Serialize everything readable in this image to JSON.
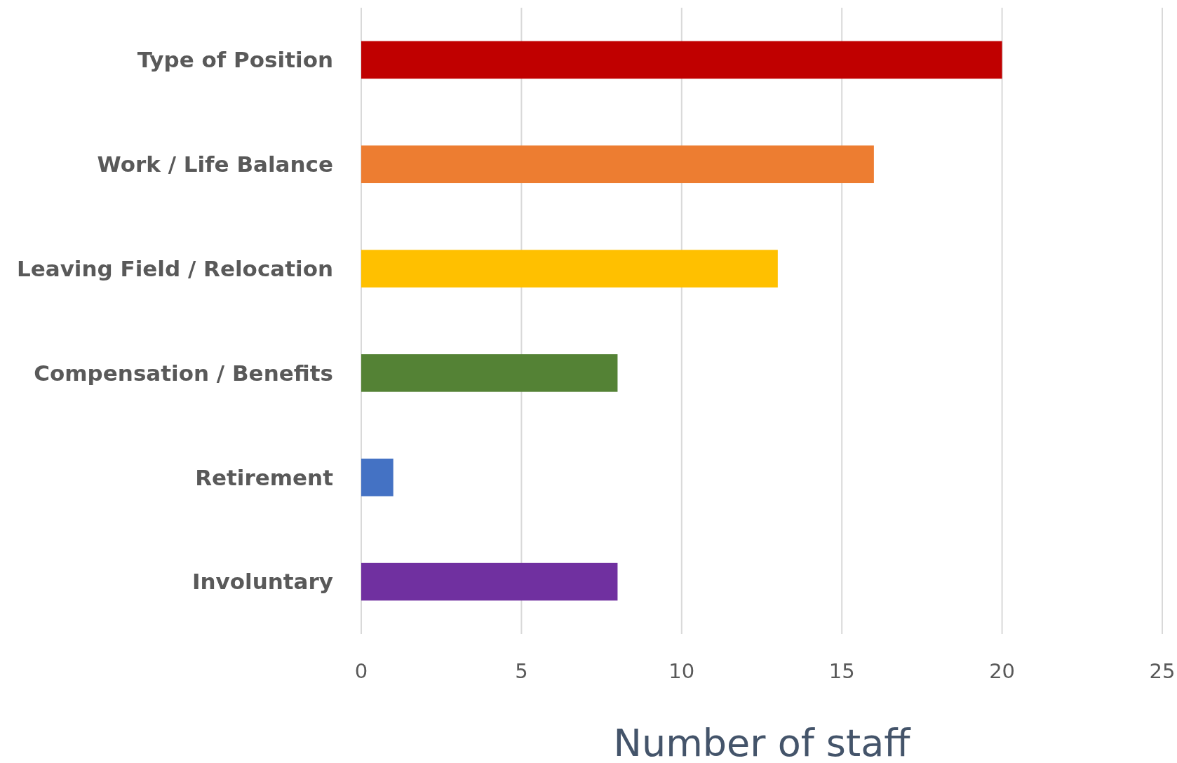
{
  "chart_data": {
    "type": "bar",
    "orientation": "horizontal",
    "xlabel": "Number of staff",
    "categories": [
      "Type of Position",
      "Work / Life Balance",
      "Leaving Field / Relocation",
      "Compensation / Benefits",
      "Retirement",
      "Involuntary"
    ],
    "values": [
      20,
      16,
      13,
      8,
      1,
      8
    ],
    "colors": [
      "#c00000",
      "#ed7d31",
      "#ffc000",
      "#548235",
      "#4472c4",
      "#7030a0"
    ],
    "xlim": [
      0,
      25
    ],
    "xticks": [
      0,
      5,
      10,
      15,
      20,
      25
    ],
    "grid": "x"
  }
}
